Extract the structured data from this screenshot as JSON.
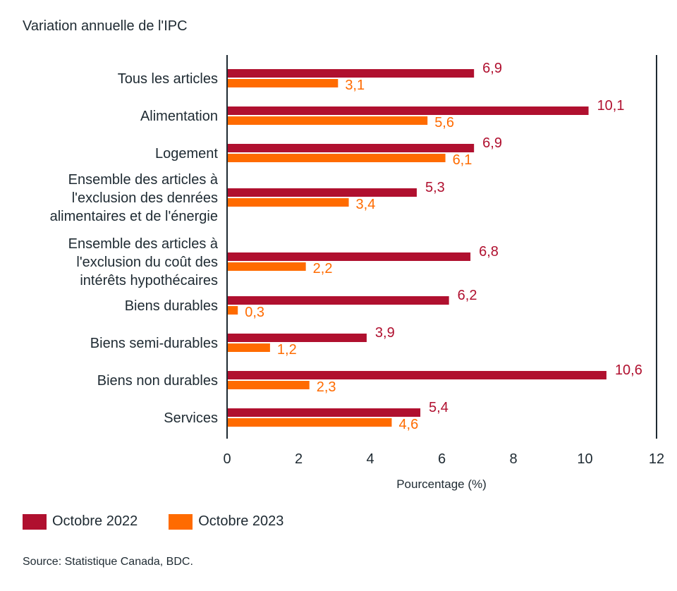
{
  "chart_title": "Variation annuelle de l'IPC",
  "source": "Source: Statistique Canada, BDC.",
  "chart_data": {
    "type": "bar",
    "orientation": "horizontal",
    "title": "Variation annuelle de l'IPC",
    "xlabel": "Pourcentage (%)",
    "ylabel": "",
    "xlim": [
      0,
      12
    ],
    "xticks": [
      "0",
      "2",
      "4",
      "6",
      "8",
      "10",
      "12"
    ],
    "categories": [
      [
        "Tous les articles"
      ],
      [
        "Alimentation"
      ],
      [
        "Logement"
      ],
      [
        "Ensemble des articles à",
        "l'exclusion des denrées",
        "alimentaires et de l'énergie"
      ],
      [
        "Ensemble des articles à",
        "l'exclusion du coût des",
        "intérêts hypothécaires"
      ],
      [
        "Biens durables"
      ],
      [
        "Biens semi-durables"
      ],
      [
        "Biens non durables"
      ],
      [
        "Services"
      ]
    ],
    "series": [
      {
        "name": "Octobre 2022",
        "color": "#b0102f",
        "values": [
          6.9,
          10.1,
          6.9,
          5.3,
          6.8,
          6.2,
          3.9,
          10.6,
          5.4
        ],
        "labels": [
          "6,9",
          "10,1",
          "6,9",
          "5,3",
          "6,8",
          "6,2",
          "3,9",
          "10,6",
          "5,4"
        ]
      },
      {
        "name": "Octobre 2023",
        "color": "#ff6b00",
        "values": [
          3.1,
          5.6,
          6.1,
          3.4,
          2.2,
          0.3,
          1.2,
          2.3,
          4.6
        ],
        "labels": [
          "3,1",
          "5,6",
          "6,1",
          "3,4",
          "2,2",
          "0,3",
          "1,2",
          "2,3",
          "4,6"
        ]
      }
    ],
    "grid": false,
    "legend_position": "bottom-left"
  }
}
